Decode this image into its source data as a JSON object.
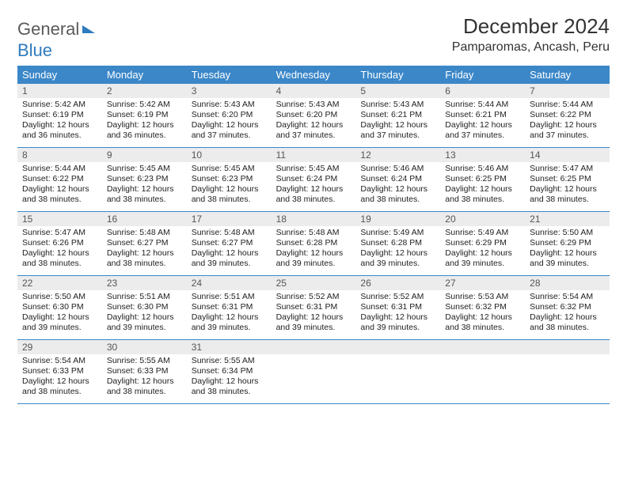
{
  "logo": {
    "part1": "General",
    "part2": "Blue"
  },
  "title": "December 2024",
  "location": "Pamparomas, Ancash, Peru",
  "colors": {
    "header_bg": "#3b87c8",
    "header_text": "#ffffff",
    "daynum_bg": "#ececec",
    "text": "#222222",
    "rule": "#3b87c8",
    "logo_gray": "#5a5a5a",
    "logo_blue": "#2f7bbf"
  },
  "layout": {
    "columns": 7,
    "rows": 5,
    "cell_fontsize_pt": 8,
    "header_fontsize_pt": 10
  },
  "dow": [
    "Sunday",
    "Monday",
    "Tuesday",
    "Wednesday",
    "Thursday",
    "Friday",
    "Saturday"
  ],
  "weeks": [
    [
      {
        "n": "1",
        "l1": "Sunrise: 5:42 AM",
        "l2": "Sunset: 6:19 PM",
        "l3": "Daylight: 12 hours",
        "l4": "and 36 minutes."
      },
      {
        "n": "2",
        "l1": "Sunrise: 5:42 AM",
        "l2": "Sunset: 6:19 PM",
        "l3": "Daylight: 12 hours",
        "l4": "and 36 minutes."
      },
      {
        "n": "3",
        "l1": "Sunrise: 5:43 AM",
        "l2": "Sunset: 6:20 PM",
        "l3": "Daylight: 12 hours",
        "l4": "and 37 minutes."
      },
      {
        "n": "4",
        "l1": "Sunrise: 5:43 AM",
        "l2": "Sunset: 6:20 PM",
        "l3": "Daylight: 12 hours",
        "l4": "and 37 minutes."
      },
      {
        "n": "5",
        "l1": "Sunrise: 5:43 AM",
        "l2": "Sunset: 6:21 PM",
        "l3": "Daylight: 12 hours",
        "l4": "and 37 minutes."
      },
      {
        "n": "6",
        "l1": "Sunrise: 5:44 AM",
        "l2": "Sunset: 6:21 PM",
        "l3": "Daylight: 12 hours",
        "l4": "and 37 minutes."
      },
      {
        "n": "7",
        "l1": "Sunrise: 5:44 AM",
        "l2": "Sunset: 6:22 PM",
        "l3": "Daylight: 12 hours",
        "l4": "and 37 minutes."
      }
    ],
    [
      {
        "n": "8",
        "l1": "Sunrise: 5:44 AM",
        "l2": "Sunset: 6:22 PM",
        "l3": "Daylight: 12 hours",
        "l4": "and 38 minutes."
      },
      {
        "n": "9",
        "l1": "Sunrise: 5:45 AM",
        "l2": "Sunset: 6:23 PM",
        "l3": "Daylight: 12 hours",
        "l4": "and 38 minutes."
      },
      {
        "n": "10",
        "l1": "Sunrise: 5:45 AM",
        "l2": "Sunset: 6:23 PM",
        "l3": "Daylight: 12 hours",
        "l4": "and 38 minutes."
      },
      {
        "n": "11",
        "l1": "Sunrise: 5:45 AM",
        "l2": "Sunset: 6:24 PM",
        "l3": "Daylight: 12 hours",
        "l4": "and 38 minutes."
      },
      {
        "n": "12",
        "l1": "Sunrise: 5:46 AM",
        "l2": "Sunset: 6:24 PM",
        "l3": "Daylight: 12 hours",
        "l4": "and 38 minutes."
      },
      {
        "n": "13",
        "l1": "Sunrise: 5:46 AM",
        "l2": "Sunset: 6:25 PM",
        "l3": "Daylight: 12 hours",
        "l4": "and 38 minutes."
      },
      {
        "n": "14",
        "l1": "Sunrise: 5:47 AM",
        "l2": "Sunset: 6:25 PM",
        "l3": "Daylight: 12 hours",
        "l4": "and 38 minutes."
      }
    ],
    [
      {
        "n": "15",
        "l1": "Sunrise: 5:47 AM",
        "l2": "Sunset: 6:26 PM",
        "l3": "Daylight: 12 hours",
        "l4": "and 38 minutes."
      },
      {
        "n": "16",
        "l1": "Sunrise: 5:48 AM",
        "l2": "Sunset: 6:27 PM",
        "l3": "Daylight: 12 hours",
        "l4": "and 38 minutes."
      },
      {
        "n": "17",
        "l1": "Sunrise: 5:48 AM",
        "l2": "Sunset: 6:27 PM",
        "l3": "Daylight: 12 hours",
        "l4": "and 39 minutes."
      },
      {
        "n": "18",
        "l1": "Sunrise: 5:48 AM",
        "l2": "Sunset: 6:28 PM",
        "l3": "Daylight: 12 hours",
        "l4": "and 39 minutes."
      },
      {
        "n": "19",
        "l1": "Sunrise: 5:49 AM",
        "l2": "Sunset: 6:28 PM",
        "l3": "Daylight: 12 hours",
        "l4": "and 39 minutes."
      },
      {
        "n": "20",
        "l1": "Sunrise: 5:49 AM",
        "l2": "Sunset: 6:29 PM",
        "l3": "Daylight: 12 hours",
        "l4": "and 39 minutes."
      },
      {
        "n": "21",
        "l1": "Sunrise: 5:50 AM",
        "l2": "Sunset: 6:29 PM",
        "l3": "Daylight: 12 hours",
        "l4": "and 39 minutes."
      }
    ],
    [
      {
        "n": "22",
        "l1": "Sunrise: 5:50 AM",
        "l2": "Sunset: 6:30 PM",
        "l3": "Daylight: 12 hours",
        "l4": "and 39 minutes."
      },
      {
        "n": "23",
        "l1": "Sunrise: 5:51 AM",
        "l2": "Sunset: 6:30 PM",
        "l3": "Daylight: 12 hours",
        "l4": "and 39 minutes."
      },
      {
        "n": "24",
        "l1": "Sunrise: 5:51 AM",
        "l2": "Sunset: 6:31 PM",
        "l3": "Daylight: 12 hours",
        "l4": "and 39 minutes."
      },
      {
        "n": "25",
        "l1": "Sunrise: 5:52 AM",
        "l2": "Sunset: 6:31 PM",
        "l3": "Daylight: 12 hours",
        "l4": "and 39 minutes."
      },
      {
        "n": "26",
        "l1": "Sunrise: 5:52 AM",
        "l2": "Sunset: 6:31 PM",
        "l3": "Daylight: 12 hours",
        "l4": "and 39 minutes."
      },
      {
        "n": "27",
        "l1": "Sunrise: 5:53 AM",
        "l2": "Sunset: 6:32 PM",
        "l3": "Daylight: 12 hours",
        "l4": "and 38 minutes."
      },
      {
        "n": "28",
        "l1": "Sunrise: 5:54 AM",
        "l2": "Sunset: 6:32 PM",
        "l3": "Daylight: 12 hours",
        "l4": "and 38 minutes."
      }
    ],
    [
      {
        "n": "29",
        "l1": "Sunrise: 5:54 AM",
        "l2": "Sunset: 6:33 PM",
        "l3": "Daylight: 12 hours",
        "l4": "and 38 minutes."
      },
      {
        "n": "30",
        "l1": "Sunrise: 5:55 AM",
        "l2": "Sunset: 6:33 PM",
        "l3": "Daylight: 12 hours",
        "l4": "and 38 minutes."
      },
      {
        "n": "31",
        "l1": "Sunrise: 5:55 AM",
        "l2": "Sunset: 6:34 PM",
        "l3": "Daylight: 12 hours",
        "l4": "and 38 minutes."
      },
      {
        "n": "",
        "l1": "",
        "l2": "",
        "l3": "",
        "l4": ""
      },
      {
        "n": "",
        "l1": "",
        "l2": "",
        "l3": "",
        "l4": ""
      },
      {
        "n": "",
        "l1": "",
        "l2": "",
        "l3": "",
        "l4": ""
      },
      {
        "n": "",
        "l1": "",
        "l2": "",
        "l3": "",
        "l4": ""
      }
    ]
  ]
}
